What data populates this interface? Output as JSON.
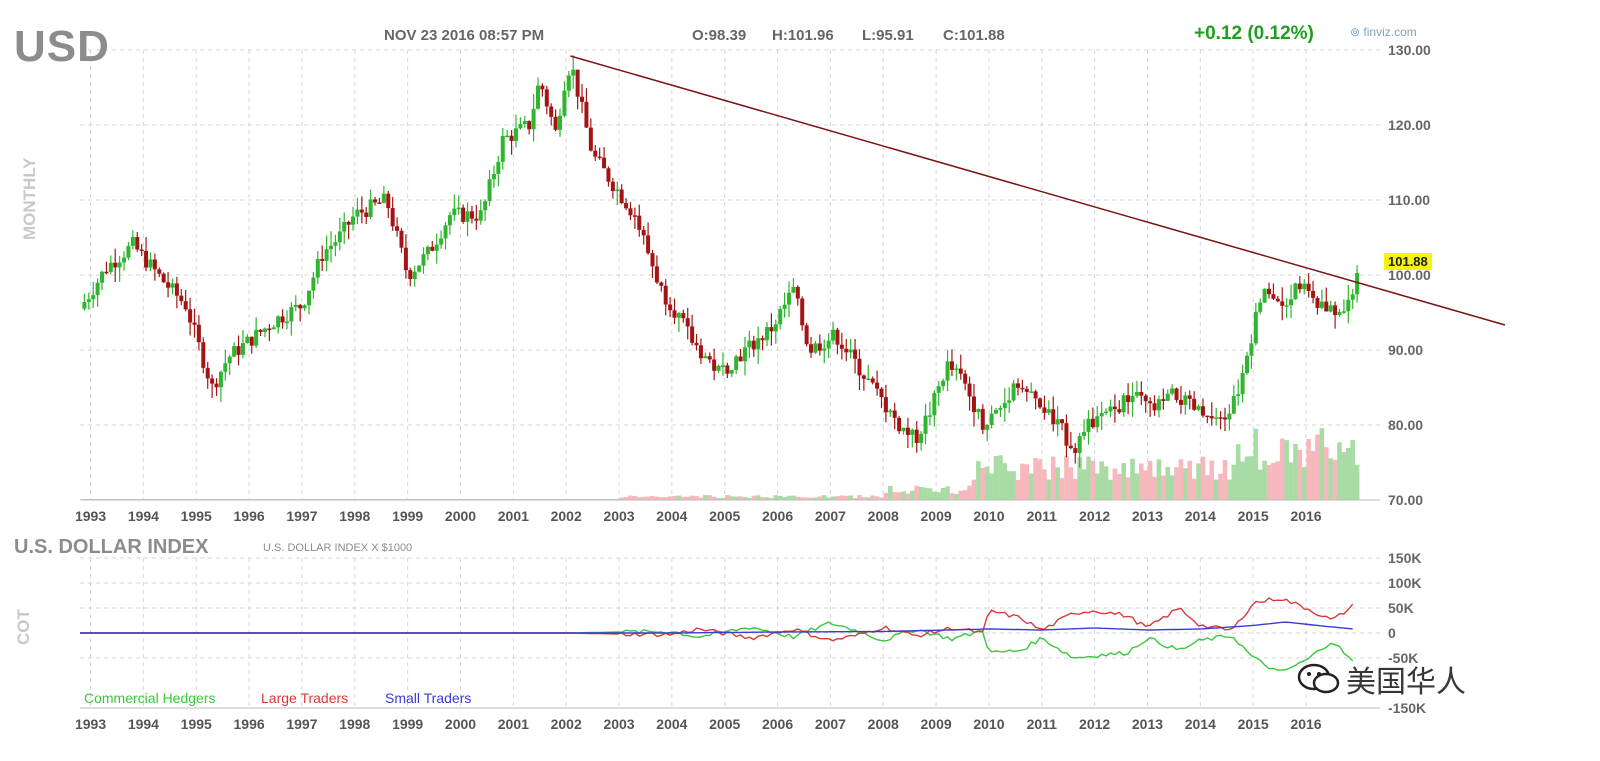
{
  "header": {
    "ticker": "USD",
    "datetime": "NOV 23 2016 08:57 PM",
    "open": "O:98.39",
    "high": "H:101.96",
    "low": "L:95.91",
    "close": "C:101.88",
    "change": "+0.12 (0.12%)",
    "source": "finviz.com",
    "last_price_badge": "101.88"
  },
  "colors": {
    "up": "#2fb52f",
    "down": "#a31515",
    "trendline": "#7a1414",
    "volume_up": "#a9dca5",
    "volume_down": "#f7b8bd",
    "commercial": "#39c839",
    "large": "#d63a3a",
    "small": "#3a3ad6",
    "grid": "#d6d6d6"
  },
  "watermark": {
    "text": "美国华人",
    "icon": "wechat-icon"
  },
  "chart_data": [
    {
      "type": "candlestick",
      "timeframe_label": "MONTHLY",
      "ylim": [
        70,
        130
      ],
      "yticks": [
        "130.00",
        "120.00",
        "110.00",
        "100.00",
        "90.00",
        "80.00",
        "70.00"
      ],
      "x_ticks": [
        "1993",
        "1994",
        "1995",
        "1996",
        "1997",
        "1998",
        "1999",
        "2000",
        "2001",
        "2002",
        "2003",
        "2004",
        "2005",
        "2006",
        "2007",
        "2008",
        "2009",
        "2010",
        "2011",
        "2012",
        "2013",
        "2014",
        "2015",
        "2016"
      ],
      "xlim": [
        1992.8,
        2017.4
      ],
      "key_points": [
        [
          1992.8,
          95.5
        ],
        [
          1993.3,
          101
        ],
        [
          1993.8,
          104
        ],
        [
          1994.4,
          99
        ],
        [
          1994.8,
          96
        ],
        [
          1995.3,
          85
        ],
        [
          1995.6,
          89
        ],
        [
          1996.5,
          94
        ],
        [
          1997.0,
          96
        ],
        [
          1997.4,
          103
        ],
        [
          1997.7,
          105
        ],
        [
          1998.0,
          108
        ],
        [
          1998.6,
          110
        ],
        [
          1999.0,
          100
        ],
        [
          1999.4,
          103
        ],
        [
          1999.8,
          108
        ],
        [
          2000.4,
          108
        ],
        [
          2000.8,
          118
        ],
        [
          2001.3,
          120
        ],
        [
          2001.5,
          126
        ],
        [
          2001.8,
          119
        ],
        [
          2002.0,
          127
        ],
        [
          2002.1,
          128
        ],
        [
          2002.3,
          122
        ],
        [
          2002.5,
          116
        ],
        [
          2002.8,
          113
        ],
        [
          2003.3,
          108
        ],
        [
          2003.8,
          98
        ],
        [
          2004.0,
          96
        ],
        [
          2004.4,
          91
        ],
        [
          2004.9,
          87
        ],
        [
          2005.4,
          90
        ],
        [
          2005.9,
          93
        ],
        [
          2006.3,
          98
        ],
        [
          2006.6,
          90
        ],
        [
          2007.1,
          92
        ],
        [
          2007.5,
          88
        ],
        [
          2007.9,
          84
        ],
        [
          2008.3,
          80
        ],
        [
          2008.6,
          78
        ],
        [
          2008.9,
          82
        ],
        [
          2009.2,
          88
        ],
        [
          2009.5,
          86
        ],
        [
          2009.9,
          80
        ],
        [
          2010.3,
          83
        ],
        [
          2010.5,
          86
        ],
        [
          2010.9,
          83
        ],
        [
          2011.3,
          80
        ],
        [
          2011.6,
          77
        ],
        [
          2011.9,
          80
        ],
        [
          2012.4,
          82
        ],
        [
          2012.7,
          84
        ],
        [
          2013.1,
          82
        ],
        [
          2013.5,
          84
        ],
        [
          2013.9,
          82
        ],
        [
          2014.3,
          80
        ],
        [
          2014.5,
          81
        ],
        [
          2014.8,
          86
        ],
        [
          2015.0,
          93
        ],
        [
          2015.2,
          99
        ],
        [
          2015.5,
          96
        ],
        [
          2015.9,
          99
        ],
        [
          2016.2,
          96
        ],
        [
          2016.5,
          95
        ],
        [
          2016.8,
          96
        ],
        [
          2016.9,
          98
        ],
        [
          2017.0,
          101.88
        ]
      ],
      "trendline": {
        "start": [
          2002.08,
          129.2
        ],
        "end": [
          2017.5,
          92.4
        ]
      },
      "last_price": 101.88,
      "volume": {
        "note": "bars at bottom of price pane, alternating green/red"
      }
    },
    {
      "type": "line",
      "title": "U.S. DOLLAR INDEX",
      "subtitle": "U.S. DOLLAR INDEX X $1000",
      "ylabel": "COT",
      "ylim": [
        -150000,
        150000
      ],
      "yticks": [
        "150K",
        "100K",
        "50K",
        "0",
        "-50K",
        "-150K"
      ],
      "series": [
        {
          "name": "Commercial Hedgers",
          "points": [
            [
              1992.8,
              0
            ],
            [
              2002.0,
              0
            ],
            [
              2003.0,
              2000
            ],
            [
              2004.0,
              3000
            ],
            [
              2004.5,
              -8000
            ],
            [
              2005.5,
              12000
            ],
            [
              2006.3,
              -8000
            ],
            [
              2007.0,
              20000
            ],
            [
              2007.5,
              5000
            ],
            [
              2008.0,
              -15000
            ],
            [
              2008.6,
              8000
            ],
            [
              2009.3,
              -12000
            ],
            [
              2009.9,
              5000
            ],
            [
              2010.0,
              -40000
            ],
            [
              2010.6,
              -35000
            ],
            [
              2011.0,
              -10000
            ],
            [
              2011.6,
              -50000
            ],
            [
              2012.0,
              -45000
            ],
            [
              2012.6,
              -40000
            ],
            [
              2013.0,
              -10000
            ],
            [
              2013.6,
              -35000
            ],
            [
              2014.0,
              -15000
            ],
            [
              2014.6,
              -5000
            ],
            [
              2015.0,
              -50000
            ],
            [
              2015.5,
              -80000
            ],
            [
              2016.0,
              -55000
            ],
            [
              2016.5,
              -15000
            ],
            [
              2016.9,
              -60000
            ]
          ]
        },
        {
          "name": "Large Traders",
          "points": [
            [
              1992.8,
              0
            ],
            [
              2002.0,
              0
            ],
            [
              2003.0,
              -2000
            ],
            [
              2004.0,
              -3000
            ],
            [
              2004.5,
              8000
            ],
            [
              2005.5,
              -10000
            ],
            [
              2006.3,
              8000
            ],
            [
              2007.0,
              -15000
            ],
            [
              2007.5,
              -5000
            ],
            [
              2008.0,
              12000
            ],
            [
              2008.6,
              -6000
            ],
            [
              2009.3,
              10000
            ],
            [
              2009.9,
              0
            ],
            [
              2010.0,
              45000
            ],
            [
              2010.6,
              30000
            ],
            [
              2011.0,
              5000
            ],
            [
              2011.6,
              40000
            ],
            [
              2012.0,
              45000
            ],
            [
              2012.6,
              35000
            ],
            [
              2013.0,
              10000
            ],
            [
              2013.6,
              50000
            ],
            [
              2014.0,
              15000
            ],
            [
              2014.6,
              5000
            ],
            [
              2015.0,
              60000
            ],
            [
              2015.5,
              70000
            ],
            [
              2016.0,
              50000
            ],
            [
              2016.5,
              25000
            ],
            [
              2016.9,
              55000
            ]
          ]
        },
        {
          "name": "Small Traders",
          "points": [
            [
              1992.8,
              0
            ],
            [
              2004.0,
              0
            ],
            [
              2006.0,
              2000
            ],
            [
              2008.0,
              3000
            ],
            [
              2010.0,
              8000
            ],
            [
              2011.0,
              6000
            ],
            [
              2012.0,
              10000
            ],
            [
              2013.0,
              6000
            ],
            [
              2014.0,
              8000
            ],
            [
              2015.0,
              15000
            ],
            [
              2015.6,
              22000
            ],
            [
              2016.5,
              12000
            ],
            [
              2016.9,
              8000
            ]
          ]
        }
      ]
    }
  ]
}
